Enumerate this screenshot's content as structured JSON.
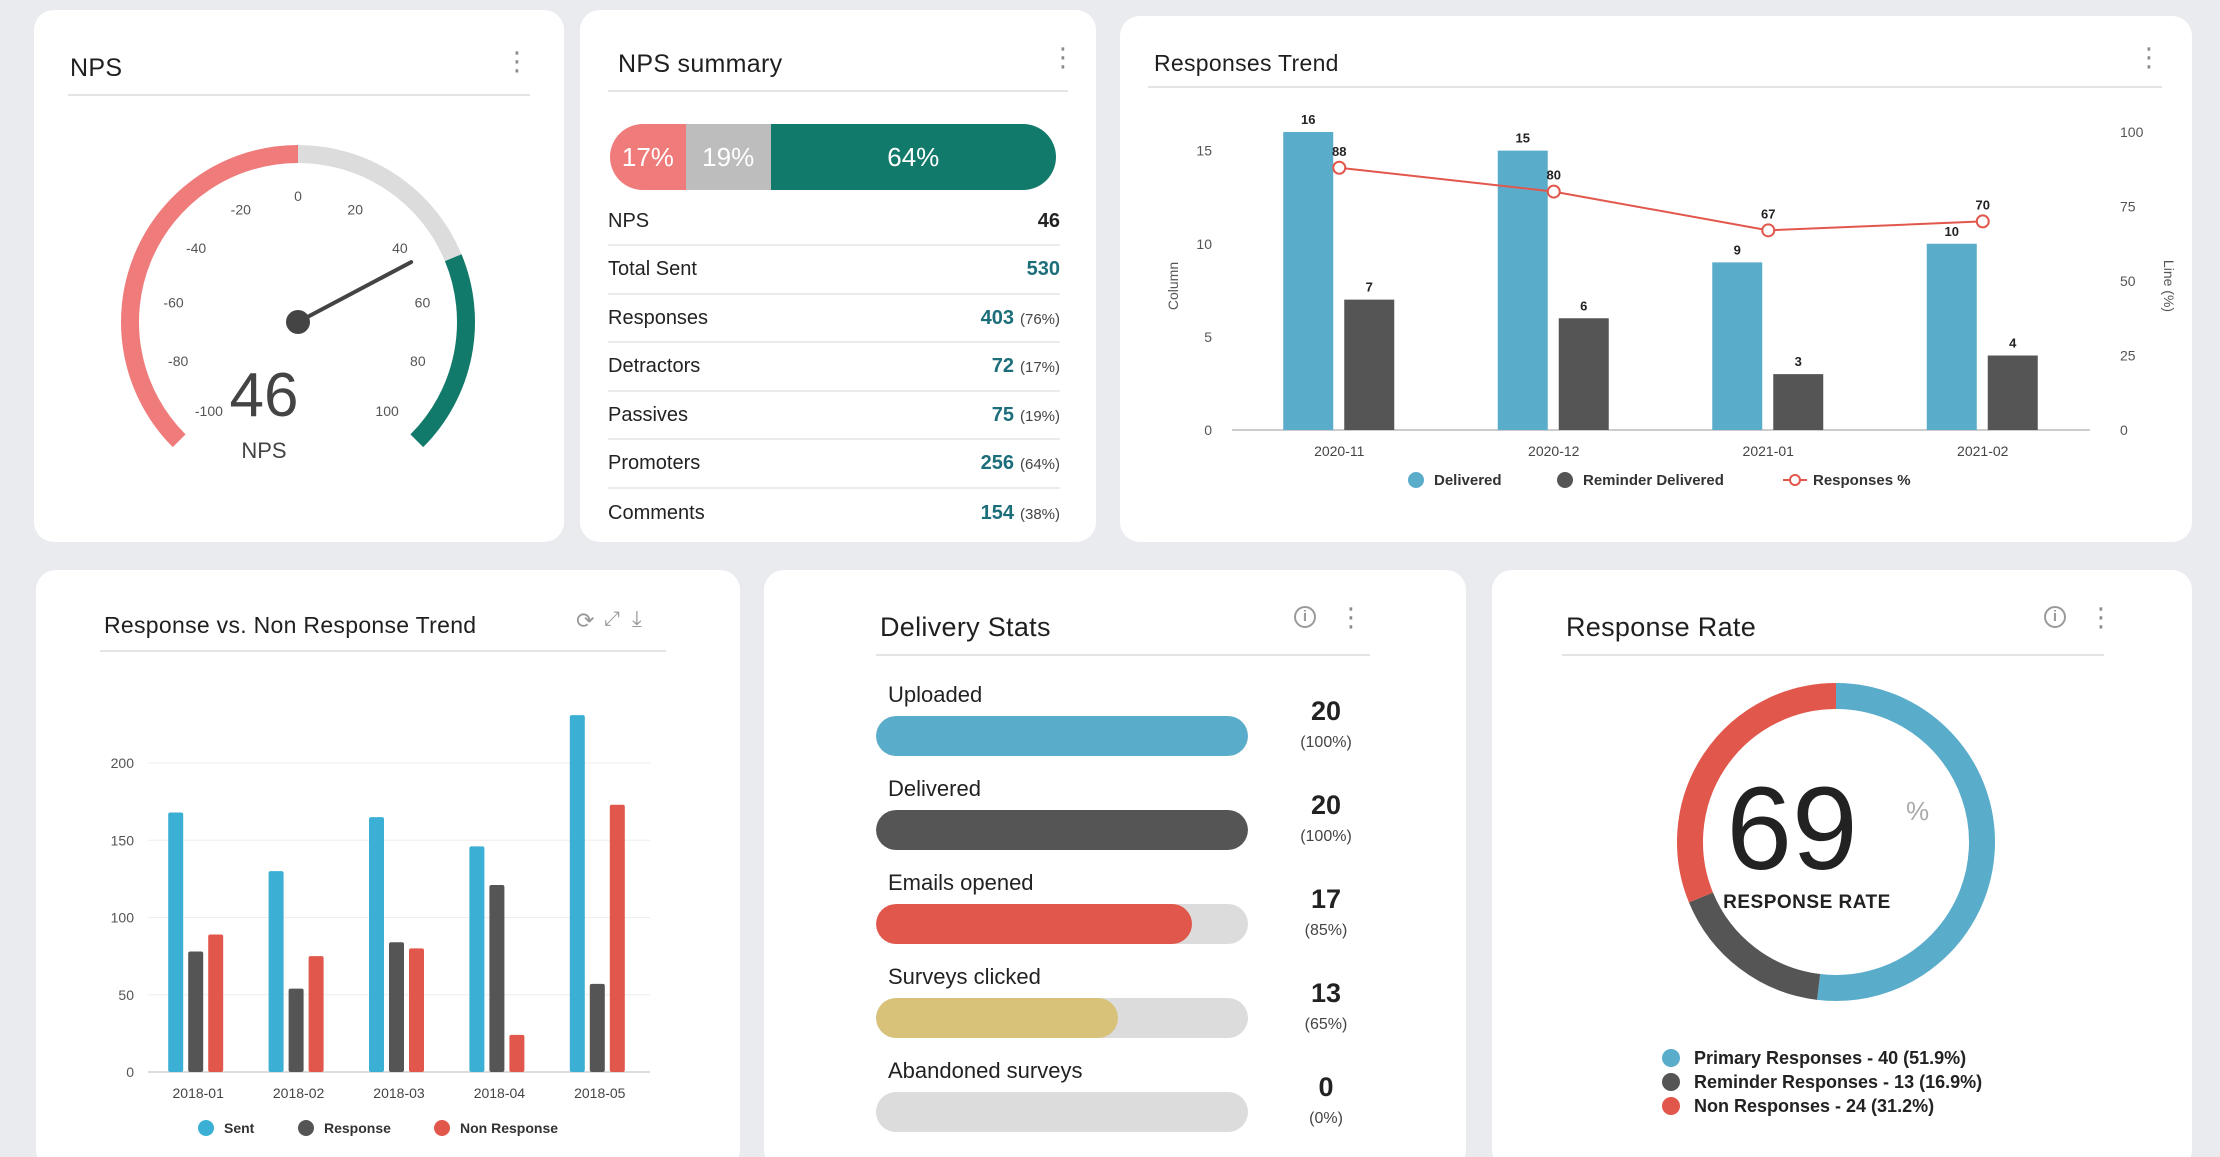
{
  "nps_gauge": {
    "title": "NPS",
    "value": "46",
    "label": "NPS",
    "ticks": [
      "-100",
      "-80",
      "-60",
      "-40",
      "-20",
      "0",
      "20",
      "40",
      "60",
      "80",
      "100"
    ],
    "score": 46,
    "colors": {
      "detractor": "#f07b7b",
      "passive": "#dcdcdc",
      "promoter": "#127a6a"
    }
  },
  "nps_summary": {
    "title": "NPS summary",
    "bar": [
      {
        "label": "17%",
        "value": 17,
        "color": "#f07b7b"
      },
      {
        "label": "19%",
        "value": 19,
        "color": "#bdbdbd"
      },
      {
        "label": "64%",
        "value": 64,
        "color": "#127a6a"
      }
    ],
    "rows": [
      {
        "label": "NPS",
        "value": "46",
        "pct": ""
      },
      {
        "label": "Total Sent",
        "value": "530",
        "pct": ""
      },
      {
        "label": "Responses",
        "value": "403",
        "pct": "(76%)"
      },
      {
        "label": "Detractors",
        "value": "72",
        "pct": "(17%)"
      },
      {
        "label": "Passives",
        "value": "75",
        "pct": "(19%)"
      },
      {
        "label": "Promoters",
        "value": "256",
        "pct": "(64%)"
      },
      {
        "label": "Comments",
        "value": "154",
        "pct": "(38%)"
      }
    ]
  },
  "responses_trend": {
    "title": "Responses Trend",
    "chart_data": {
      "type": "bar",
      "categories": [
        "2020-11",
        "2020-12",
        "2021-01",
        "2021-02"
      ],
      "series": [
        {
          "name": "Delivered",
          "values": [
            16,
            15,
            9,
            10
          ],
          "color": "#5aaccb"
        },
        {
          "name": "Reminder Delivered",
          "values": [
            7,
            6,
            3,
            4
          ],
          "color": "#555555"
        }
      ],
      "line": {
        "name": "Responses %",
        "values": [
          88,
          80,
          67,
          70
        ],
        "color": "#e2574c"
      },
      "ylabel": "Column",
      "y2label": "Line (%)",
      "ylim": [
        0,
        16
      ],
      "yticks": [
        "0",
        "5",
        "10",
        "15"
      ],
      "y2lim": [
        0,
        100
      ],
      "y2ticks": [
        "0",
        "25",
        "50",
        "75",
        "100"
      ]
    }
  },
  "response_trend2": {
    "title": "Response vs. Non Response Trend",
    "chart_data": {
      "type": "bar",
      "categories": [
        "2018-01",
        "2018-02",
        "2018-03",
        "2018-04",
        "2018-05"
      ],
      "series": [
        {
          "name": "Sent",
          "values": [
            168,
            130,
            165,
            146,
            231
          ],
          "color": "#3cb0d4"
        },
        {
          "name": "Response",
          "values": [
            78,
            54,
            84,
            121,
            57
          ],
          "color": "#555555"
        },
        {
          "name": "Non Response",
          "values": [
            89,
            75,
            80,
            24,
            173
          ],
          "color": "#e2574c"
        }
      ],
      "ylim": [
        0,
        231
      ],
      "yticks": [
        "0",
        "50",
        "100",
        "150",
        "200"
      ]
    }
  },
  "delivery_stats": {
    "title": "Delivery Stats",
    "rows": [
      {
        "label": "Uploaded",
        "value": "20",
        "pct": "(100%)",
        "fraction": 1.0,
        "color": "#5aaccb"
      },
      {
        "label": "Delivered",
        "value": "20",
        "pct": "(100%)",
        "fraction": 1.0,
        "color": "#555555"
      },
      {
        "label": "Emails opened",
        "value": "17",
        "pct": "(85%)",
        "fraction": 0.85,
        "color": "#e2574c"
      },
      {
        "label": "Surveys clicked",
        "value": "13",
        "pct": "(65%)",
        "fraction": 0.65,
        "color": "#d8c27a"
      },
      {
        "label": "Abandoned surveys",
        "value": "0",
        "pct": "(0%)",
        "fraction": 0.0,
        "color": "#dcdcdc"
      }
    ]
  },
  "response_rate": {
    "title": "Response Rate",
    "value": "69",
    "unit": "%",
    "label": "RESPONSE RATE",
    "chart_data": {
      "type": "pie",
      "slices": [
        {
          "name": "Primary Responses",
          "value": 51.9,
          "color": "#5aaccb"
        },
        {
          "name": "Reminder Responses",
          "value": 16.9,
          "color": "#555555"
        },
        {
          "name": "Non Responses",
          "value": 31.2,
          "color": "#e2574c"
        }
      ]
    },
    "legend": [
      "Primary Responses - 40 (51.9%)",
      "Reminder Responses - 13 (16.9%)",
      "Non Responses - 24 (31.2%)"
    ]
  }
}
